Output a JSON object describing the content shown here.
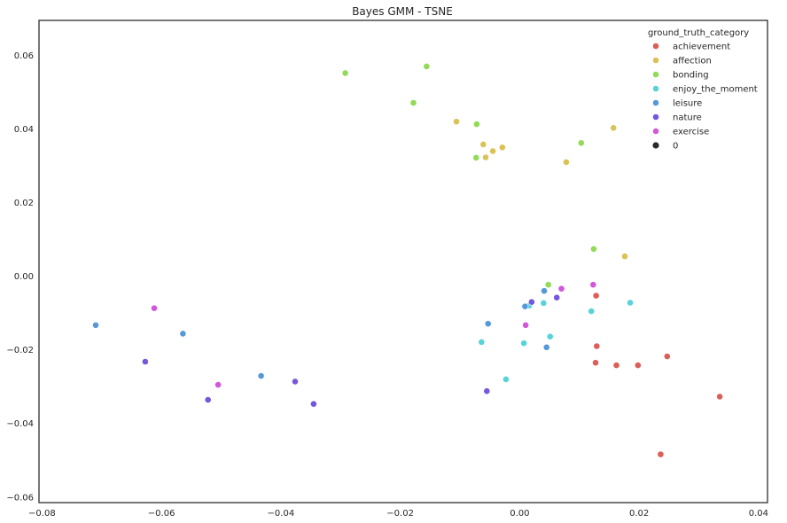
{
  "chart_data": {
    "type": "scatter",
    "title": "Bayes GMM - TSNE",
    "xlabel": "",
    "ylabel": "",
    "xlim": [
      -0.0805,
      0.0415
    ],
    "ylim": [
      -0.0615,
      0.0695
    ],
    "xticks": [
      -0.08,
      -0.06,
      -0.04,
      -0.02,
      0.0,
      0.02,
      0.04
    ],
    "xtick_labels": [
      "−0.08",
      "−0.06",
      "−0.04",
      "−0.02",
      "0.00",
      "0.02",
      "0.04"
    ],
    "yticks": [
      -0.06,
      -0.04,
      -0.02,
      0.0,
      0.02,
      0.04,
      0.06
    ],
    "ytick_labels": [
      "−0.06",
      "−0.04",
      "−0.02",
      "0.00",
      "0.02",
      "0.04",
      "0.06"
    ],
    "grid": false,
    "legend": {
      "placement": "top-right",
      "title": "ground_truth_category",
      "size_entry": {
        "label": "0",
        "color": "#2a2a2a"
      }
    },
    "series": [
      {
        "name": "achievement",
        "color": "#db5f57",
        "points": [
          [
            0.0128,
            -0.0053
          ],
          [
            0.0129,
            -0.019
          ],
          [
            0.0127,
            -0.0235
          ],
          [
            0.0162,
            -0.0242
          ],
          [
            0.0198,
            -0.0242
          ],
          [
            0.0247,
            -0.0218
          ],
          [
            0.0335,
            -0.0327
          ],
          [
            0.0236,
            -0.0484
          ]
        ]
      },
      {
        "name": "affection",
        "color": "#dbc257",
        "points": [
          [
            -0.0106,
            0.042
          ],
          [
            -0.0061,
            0.0358
          ],
          [
            -0.0045,
            0.034
          ],
          [
            -0.0029,
            0.035
          ],
          [
            -0.0057,
            0.0323
          ],
          [
            0.0078,
            0.031
          ],
          [
            0.0157,
            0.0403
          ],
          [
            0.0176,
            0.0054
          ]
        ]
      },
      {
        "name": "bonding",
        "color": "#91db57",
        "points": [
          [
            -0.0292,
            0.0552
          ],
          [
            -0.0156,
            0.057
          ],
          [
            -0.0178,
            0.0471
          ],
          [
            -0.0072,
            0.0413
          ],
          [
            -0.0073,
            0.0322
          ],
          [
            0.0103,
            0.0362
          ],
          [
            0.0124,
            0.0074
          ],
          [
            0.0048,
            -0.0023
          ]
        ]
      },
      {
        "name": "enjoy_the_moment",
        "color": "#57d3db",
        "points": [
          [
            0.004,
            -0.0073
          ],
          [
            0.0016,
            -0.008
          ],
          [
            0.012,
            -0.0095
          ],
          [
            0.0185,
            -0.0072
          ],
          [
            -0.0064,
            -0.0179
          ],
          [
            0.0007,
            -0.0182
          ],
          [
            0.0051,
            -0.0164
          ],
          [
            -0.0023,
            -0.028
          ]
        ]
      },
      {
        "name": "leisure",
        "color": "#5798db",
        "points": [
          [
            -0.071,
            -0.0133
          ],
          [
            -0.0564,
            -0.0156
          ],
          [
            -0.0433,
            -0.0271
          ],
          [
            -0.0053,
            -0.0129
          ],
          [
            0.0009,
            -0.0082
          ],
          [
            0.0041,
            -0.004
          ],
          [
            0.0045,
            -0.0193
          ]
        ]
      },
      {
        "name": "nature",
        "color": "#7557db",
        "points": [
          [
            -0.0627,
            -0.0232
          ],
          [
            -0.0522,
            -0.0336
          ],
          [
            -0.0376,
            -0.0286
          ],
          [
            -0.0345,
            -0.0347
          ],
          [
            -0.0055,
            -0.0312
          ],
          [
            0.002,
            -0.007
          ],
          [
            0.0062,
            -0.0058
          ]
        ]
      },
      {
        "name": "exercise",
        "color": "#d357db",
        "points": [
          [
            -0.0612,
            -0.0087
          ],
          [
            -0.0505,
            -0.0295
          ],
          [
            0.001,
            -0.0133
          ],
          [
            0.007,
            -0.0034
          ],
          [
            0.0123,
            -0.0023
          ]
        ]
      }
    ]
  }
}
